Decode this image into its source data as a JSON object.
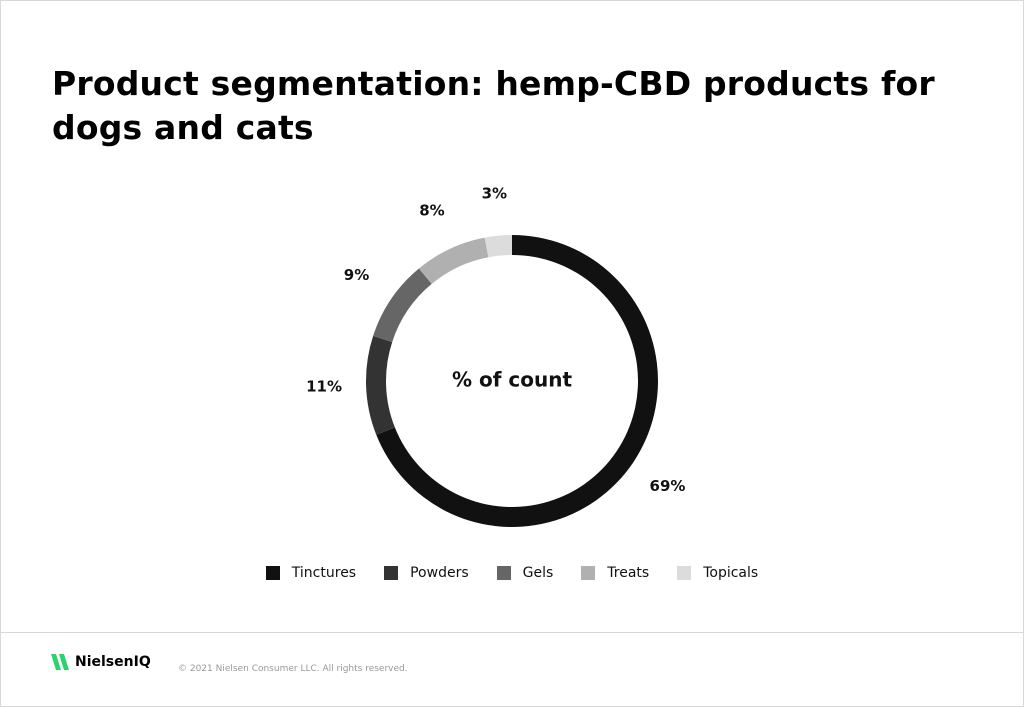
{
  "chart_data": {
    "type": "pie",
    "title": "Product segmentation: hemp-CBD products for dogs and cats",
    "center_label": "% of count",
    "categories": [
      "Tinctures",
      "Powders",
      "Gels",
      "Treats",
      "Topicals"
    ],
    "values": [
      69,
      11,
      9,
      8,
      3
    ],
    "value_labels": [
      "69%",
      "11%",
      "9%",
      "8%",
      "3%"
    ],
    "colors": [
      "#111111",
      "#333333",
      "#666666",
      "#b0b0b0",
      "#dcdcdc"
    ],
    "donut": true
  },
  "footer": {
    "logo": "NielsenIQ",
    "copyright": "© 2021 Nielsen Consumer LLC. All rights reserved."
  }
}
